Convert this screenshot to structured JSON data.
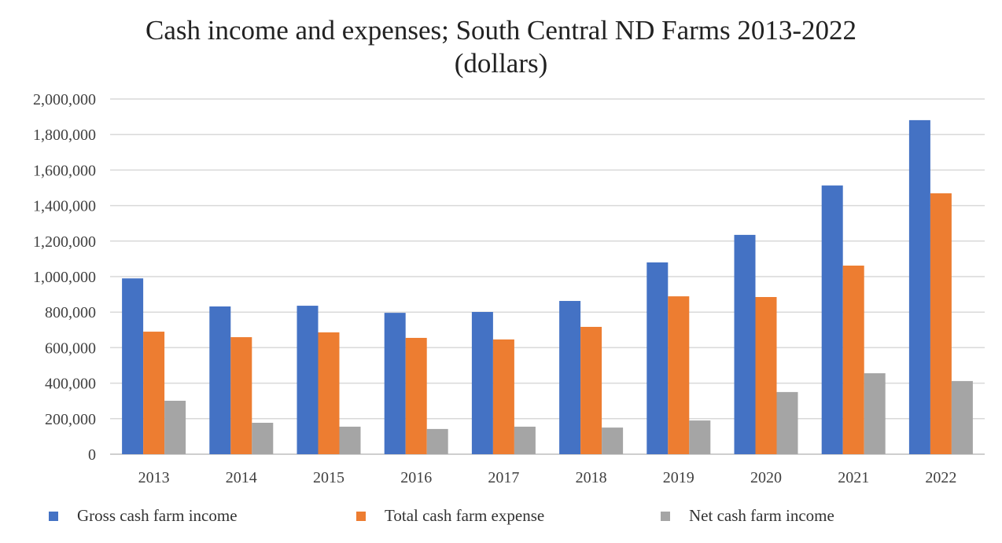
{
  "chart_data": {
    "type": "bar",
    "title": "Cash income and expenses; South Central ND Farms 2013-2022",
    "subtitle": "(dollars)",
    "xlabel": "",
    "ylabel": "",
    "ylim": [
      0,
      2000000
    ],
    "yticks": [
      "0",
      "200,000",
      "400,000",
      "600,000",
      "800,000",
      "1,000,000",
      "1,200,000",
      "1,400,000",
      "1,600,000",
      "1,800,000",
      "2,000,000"
    ],
    "grid": true,
    "legend_position": "bottom",
    "categories": [
      "2013",
      "2014",
      "2015",
      "2016",
      "2017",
      "2018",
      "2019",
      "2020",
      "2021",
      "2022"
    ],
    "series": [
      {
        "name": "Gross cash farm income",
        "color": "#4472C4",
        "values": [
          990000,
          832000,
          836000,
          796000,
          801000,
          863000,
          1080000,
          1235000,
          1513000,
          1881000
        ]
      },
      {
        "name": "Total cash farm expense",
        "color": "#ED7D31",
        "values": [
          690000,
          659000,
          686000,
          655000,
          646000,
          717000,
          889000,
          885000,
          1062000,
          1469000
        ]
      },
      {
        "name": "Net cash farm income",
        "color": "#A5A5A5",
        "values": [
          301000,
          177000,
          155000,
          142000,
          155000,
          150000,
          190000,
          350000,
          456000,
          412000
        ]
      }
    ]
  }
}
